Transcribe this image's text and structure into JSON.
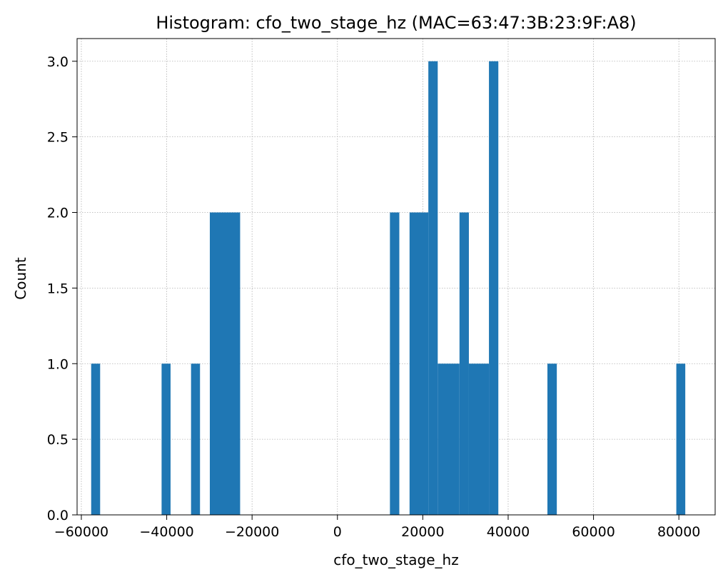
{
  "chart_data": {
    "type": "bar",
    "title": "Histogram: cfo_two_stage_hz (MAC=63:47:3B:23:9F:A8)",
    "xlabel": "cfo_two_stage_hz",
    "ylabel": "Count",
    "xlim": [
      -61000,
      88500
    ],
    "ylim": [
      0,
      3.15
    ],
    "xticks": [
      -60000,
      -40000,
      -20000,
      0,
      20000,
      40000,
      60000,
      80000
    ],
    "xtick_labels": [
      "−60000",
      "−40000",
      "−20000",
      "0",
      "20000",
      "40000",
      "60000",
      "80000"
    ],
    "yticks": [
      0,
      0.5,
      1,
      1.5,
      2,
      2.5,
      3
    ],
    "ytick_labels": [
      "0.0",
      "0.5",
      "1.0",
      "1.5",
      "2.0",
      "2.5",
      "3.0"
    ],
    "grid": true,
    "bar_color": "#1f77b4",
    "bins": [
      {
        "x0": -57700,
        "x1": -55600,
        "count": 1
      },
      {
        "x0": -41200,
        "x1": -39100,
        "count": 1
      },
      {
        "x0": -34300,
        "x1": -32200,
        "count": 1
      },
      {
        "x0": -29900,
        "x1": -22800,
        "count": 2
      },
      {
        "x0": 12300,
        "x1": 14500,
        "count": 2
      },
      {
        "x0": 16900,
        "x1": 21300,
        "count": 2
      },
      {
        "x0": 21300,
        "x1": 23500,
        "count": 3
      },
      {
        "x0": 23500,
        "x1": 28600,
        "count": 1
      },
      {
        "x0": 28600,
        "x1": 30800,
        "count": 2
      },
      {
        "x0": 30800,
        "x1": 35500,
        "count": 1
      },
      {
        "x0": 35500,
        "x1": 37700,
        "count": 3
      },
      {
        "x0": 49200,
        "x1": 51400,
        "count": 1
      },
      {
        "x0": 79400,
        "x1": 81500,
        "count": 1
      }
    ]
  }
}
